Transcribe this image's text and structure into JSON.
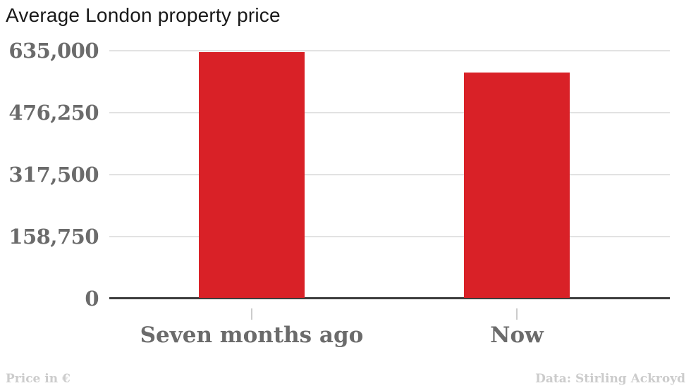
{
  "title": "Average London property price",
  "footer": {
    "left": "Price in €",
    "right": "Data: Stirling Ackroyd"
  },
  "chart_data": {
    "type": "bar",
    "title": "Average London property price",
    "categories": [
      "Seven months ago",
      "Now"
    ],
    "values": [
      630000,
      577000
    ],
    "xlabel": "",
    "ylabel": "Price in €",
    "ylim": [
      0,
      635000
    ],
    "yticks": [
      {
        "value": 0,
        "label": "0"
      },
      {
        "value": 158750,
        "label": "158,750"
      },
      {
        "value": 317500,
        "label": "317,500"
      },
      {
        "value": 476250,
        "label": "476,250"
      },
      {
        "value": 635000,
        "label": "635,000"
      }
    ],
    "grid": true,
    "legend": false,
    "source": "Data: Stirling Ackroyd",
    "bar_color": "#d92127"
  },
  "colors": {
    "bar": "#d92127",
    "axis_text": "#6b6b6b",
    "grid_line": "#e2e2e2",
    "baseline": "#3d3d3d",
    "footer_text": "#cccccc",
    "title_text": "#191919"
  }
}
